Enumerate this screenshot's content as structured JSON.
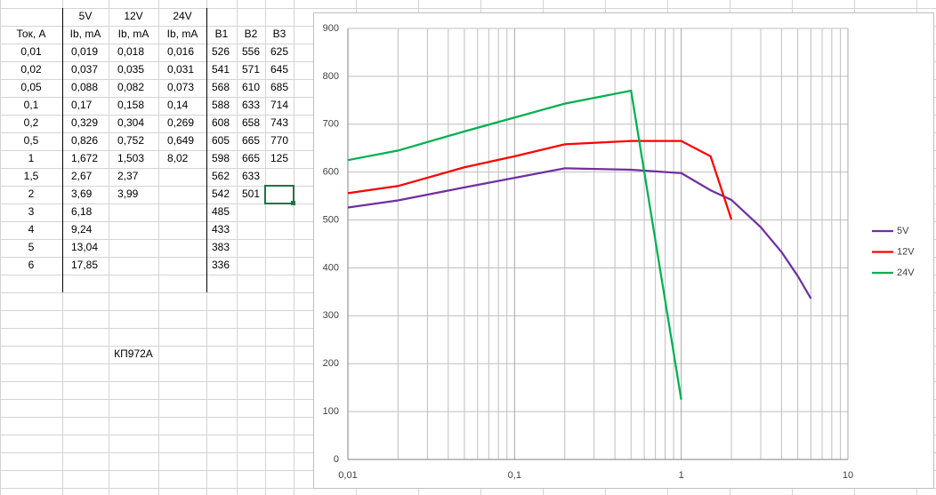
{
  "table": {
    "voltages": [
      "5V",
      "12V",
      "24V"
    ],
    "headers": [
      "Ток, А",
      "Ib, mA",
      "Ib, mA",
      "Ib, mA",
      "B1",
      "B2",
      "B3"
    ],
    "rows": [
      [
        "0,01",
        "0,019",
        "0,018",
        "0,016",
        "526",
        "556",
        "625"
      ],
      [
        "0,02",
        "0,037",
        "0,035",
        "0,031",
        "541",
        "571",
        "645"
      ],
      [
        "0,05",
        "0,088",
        "0,082",
        "0,073",
        "568",
        "610",
        "685"
      ],
      [
        "0,1",
        "0,17",
        "0,158",
        "0,14",
        "588",
        "633",
        "714"
      ],
      [
        "0,2",
        "0,329",
        "0,304",
        "0,269",
        "608",
        "658",
        "743"
      ],
      [
        "0,5",
        "0,826",
        "0,752",
        "0,649",
        "605",
        "665",
        "770"
      ],
      [
        "1",
        "1,672",
        "1,503",
        "8,02",
        "598",
        "665",
        "125"
      ],
      [
        "1,5",
        "2,67",
        "2,37",
        null,
        "562",
        "633",
        null
      ],
      [
        "2",
        "3,69",
        "3,99",
        null,
        "542",
        "501",
        null
      ],
      [
        "3",
        "6,18",
        null,
        null,
        "485",
        null,
        null
      ],
      [
        "4",
        "9,24",
        null,
        null,
        "433",
        null,
        null
      ],
      [
        "5",
        "13,04",
        null,
        null,
        "383",
        null,
        null
      ],
      [
        "6",
        "17,85",
        null,
        null,
        "336",
        null,
        null
      ]
    ],
    "note": "КП972А"
  },
  "chart_data": {
    "type": "line",
    "x": [
      0.01,
      0.02,
      0.05,
      0.1,
      0.2,
      0.5,
      1,
      1.5,
      2,
      3,
      4,
      5,
      6
    ],
    "series": [
      {
        "name": "5V",
        "color": "#7030a0",
        "values": [
          526,
          541,
          568,
          588,
          608,
          605,
          598,
          562,
          542,
          485,
          433,
          383,
          336
        ]
      },
      {
        "name": "12V",
        "color": "#ff0000",
        "values": [
          556,
          571,
          610,
          633,
          658,
          665,
          665,
          633,
          501,
          null,
          null,
          null,
          null
        ]
      },
      {
        "name": "24V",
        "color": "#00b050",
        "values": [
          625,
          645,
          685,
          714,
          743,
          770,
          125,
          null,
          null,
          null,
          null,
          null,
          null
        ]
      }
    ],
    "xlog": true,
    "xlim": [
      0.01,
      10
    ],
    "xticks": [
      {
        "value": 0.01,
        "label": "0,01"
      },
      {
        "value": 0.1,
        "label": "0,1"
      },
      1,
      10
    ],
    "ylim": [
      0,
      900
    ],
    "yticks": [
      0,
      100,
      200,
      300,
      400,
      500,
      600,
      700,
      800,
      900
    ],
    "grid": true,
    "legend": "right"
  }
}
